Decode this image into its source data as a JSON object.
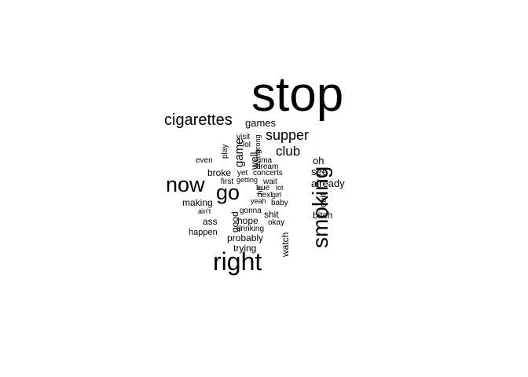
{
  "wordcloud": {
    "color": "#000000",
    "words": [
      {
        "text": "stop",
        "rotated": false
      },
      {
        "text": "cigarettes",
        "rotated": false
      },
      {
        "text": "games",
        "rotated": false
      },
      {
        "text": "supper",
        "rotated": false
      },
      {
        "text": "visit",
        "rotated": false
      },
      {
        "text": "lol",
        "rotated": false
      },
      {
        "text": "club",
        "rotated": false
      },
      {
        "text": "wrong",
        "rotated": true
      },
      {
        "text": "game",
        "rotated": true
      },
      {
        "text": "play",
        "rotated": true
      },
      {
        "text": "well",
        "rotated": true
      },
      {
        "text": "living",
        "rotated": true
      },
      {
        "text": "even",
        "rotated": false
      },
      {
        "text": "ima",
        "rotated": false
      },
      {
        "text": "oh",
        "rotated": false
      },
      {
        "text": "dream",
        "rotated": false
      },
      {
        "text": "see",
        "rotated": false
      },
      {
        "text": "broke",
        "rotated": false
      },
      {
        "text": "yet",
        "rotated": false
      },
      {
        "text": "concerts",
        "rotated": false
      },
      {
        "text": "first",
        "rotated": false
      },
      {
        "text": "getting",
        "rotated": false
      },
      {
        "text": "wait",
        "rotated": false
      },
      {
        "text": "already",
        "rotated": false
      },
      {
        "text": "now",
        "rotated": false
      },
      {
        "text": "go",
        "rotated": false
      },
      {
        "text": "hit",
        "rotated": true
      },
      {
        "text": "true",
        "rotated": false
      },
      {
        "text": "lot",
        "rotated": false
      },
      {
        "text": "smoking",
        "rotated": true
      },
      {
        "text": "next",
        "rotated": false
      },
      {
        "text": "girl",
        "rotated": false
      },
      {
        "text": "quit",
        "rotated": true
      },
      {
        "text": "making",
        "rotated": false
      },
      {
        "text": "yeah",
        "rotated": false
      },
      {
        "text": "baby",
        "rotated": false
      },
      {
        "text": "ain't",
        "rotated": false
      },
      {
        "text": "gonna",
        "rotated": false
      },
      {
        "text": "shit",
        "rotated": false
      },
      {
        "text": "bitch",
        "rotated": false
      },
      {
        "text": "good",
        "rotated": true
      },
      {
        "text": "ass",
        "rotated": false
      },
      {
        "text": "hope",
        "rotated": false
      },
      {
        "text": "okay",
        "rotated": false
      },
      {
        "text": "drinking",
        "rotated": false
      },
      {
        "text": "happen",
        "rotated": false
      },
      {
        "text": "watch",
        "rotated": true
      },
      {
        "text": "probably",
        "rotated": false
      },
      {
        "text": "trying",
        "rotated": false
      },
      {
        "text": "right",
        "rotated": false
      }
    ]
  }
}
